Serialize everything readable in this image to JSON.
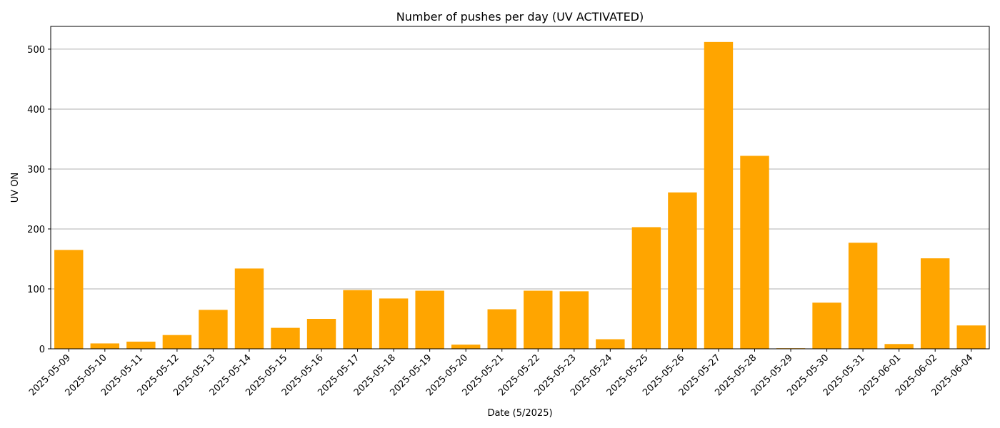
{
  "chart_data": {
    "type": "bar",
    "title": "Number of pushes per day (UV ACTIVATED)",
    "xlabel": "Date (5/2025)",
    "ylabel": "UV ON",
    "categories": [
      "2025-05-09",
      "2025-05-10",
      "2025-05-11",
      "2025-05-12",
      "2025-05-13",
      "2025-05-14",
      "2025-05-15",
      "2025-05-16",
      "2025-05-17",
      "2025-05-18",
      "2025-05-19",
      "2025-05-20",
      "2025-05-21",
      "2025-05-22",
      "2025-05-23",
      "2025-05-24",
      "2025-05-25",
      "2025-05-26",
      "2025-05-27",
      "2025-05-28",
      "2025-05-29",
      "2025-05-30",
      "2025-05-31",
      "2025-06-01",
      "2025-06-02",
      "2025-06-04"
    ],
    "values": [
      165,
      9,
      12,
      23,
      65,
      134,
      35,
      50,
      98,
      84,
      97,
      7,
      66,
      97,
      96,
      16,
      203,
      261,
      512,
      322,
      1,
      77,
      177,
      8,
      151,
      39
    ],
    "ylim": [
      0,
      538
    ],
    "yticks": [
      0,
      100,
      200,
      300,
      400,
      500
    ],
    "grid": "y",
    "bar_color": "#FFA500",
    "grid_color": "#b0b0b0",
    "legend": "none"
  }
}
